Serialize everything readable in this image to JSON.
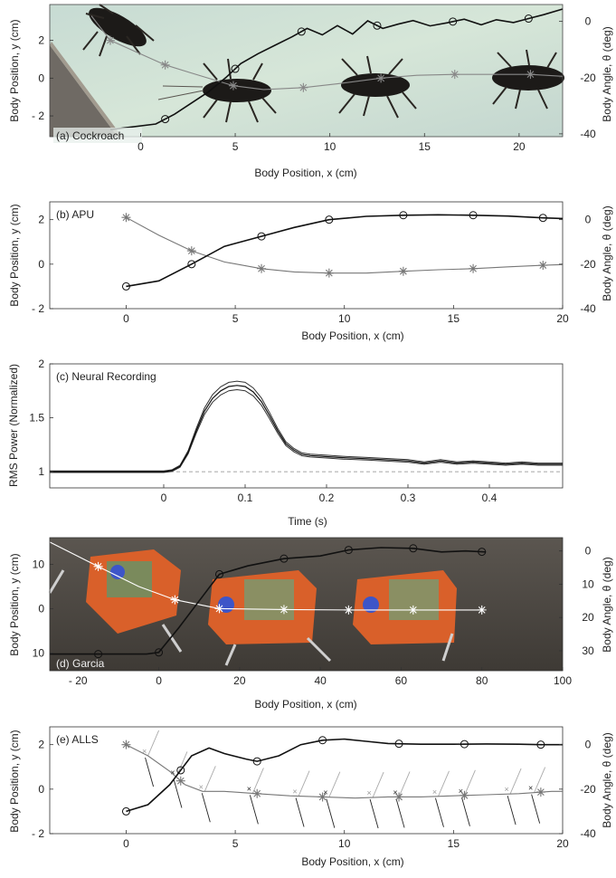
{
  "chart_data": [
    {
      "id": "a",
      "type": "line",
      "panel_label": "(a) Cockroach",
      "background": "photo",
      "xlabel": "Body Position, x (cm)",
      "ylabel": "Body Position, y (cm)",
      "y2label": "Body Angle, θ (deg)",
      "xlim": [
        -4.8,
        22.3
      ],
      "ylim": [
        -3.1,
        3.9
      ],
      "y2lim": [
        -41,
        6
      ],
      "xticks": [
        0,
        5,
        10,
        15,
        20
      ],
      "yticks": [
        2,
        0,
        -2
      ],
      "ytick_labels": [
        "2",
        "0",
        "- 2"
      ],
      "y2ticks": [
        0,
        -20,
        -40
      ],
      "series": [
        {
          "axis": "y",
          "color": "#888888",
          "marker": "star",
          "x": [
            -2.6,
            -1.6,
            1.3,
            2.6,
            4.9,
            6.5,
            8.6,
            10.4,
            12.7,
            14.6,
            16.6,
            18.6,
            20.6,
            22.3
          ],
          "y": [
            3.3,
            2.0,
            0.7,
            0.3,
            -0.4,
            -0.6,
            -0.5,
            -0.3,
            0.0,
            0.15,
            0.2,
            0.2,
            0.2,
            0.1
          ],
          "marker_x": [
            -1.6,
            1.3,
            4.9,
            8.6,
            12.7,
            16.6,
            20.6
          ]
        },
        {
          "axis": "y2",
          "color": "#111111",
          "marker": "circle",
          "x": [
            -1.6,
            0.8,
            1.8,
            2.7,
            3.6,
            4.5,
            5.3,
            6.2,
            7.1,
            8.0,
            8.8,
            9.6,
            10.4,
            11.2,
            12.0,
            12.8,
            13.6,
            14.4,
            15.3,
            16.2,
            17.1,
            18.0,
            18.8,
            19.7,
            20.5,
            21.3,
            22.3
          ],
          "y": [
            -38.5,
            -36.5,
            -33,
            -29,
            -25,
            -20,
            -15,
            -11.5,
            -8.5,
            -5.5,
            -2.5,
            -4.8,
            -1.5,
            -4.5,
            0.2,
            -2.5,
            -1.0,
            0.3,
            -1.6,
            -0.5,
            0.8,
            -1.2,
            0.6,
            -0.4,
            1.0,
            2.4,
            4.4
          ],
          "marker_x": [
            1.3,
            5.0,
            8.5,
            12.5,
            16.5,
            20.5
          ]
        }
      ]
    },
    {
      "id": "b",
      "type": "line",
      "panel_label": "(b) APU",
      "xlabel": "Body Position, x (cm)",
      "ylabel": "Body Position, y (cm)",
      "y2label": "Body Angle, θ (deg)",
      "xlim": [
        -3.5,
        20
      ],
      "ylim": [
        -2,
        2.8
      ],
      "y2lim": [
        -40,
        8
      ],
      "xticks": [
        0,
        5,
        10,
        15,
        20
      ],
      "yticks": [
        2,
        0,
        -2
      ],
      "ytick_labels": [
        "2",
        "0",
        "- 2"
      ],
      "y2ticks": [
        0,
        -20,
        -40
      ],
      "series": [
        {
          "axis": "y",
          "color": "#777777",
          "marker": "star",
          "x": [
            0,
            1.5,
            3.0,
            4.5,
            6.2,
            7.7,
            9.3,
            11.0,
            12.7,
            14.3,
            15.9,
            17.5,
            19.1,
            20
          ],
          "y": [
            2.1,
            1.3,
            0.6,
            0.1,
            -0.2,
            -0.35,
            -0.4,
            -0.4,
            -0.32,
            -0.25,
            -0.2,
            -0.12,
            -0.05,
            -0.02
          ],
          "marker_x": [
            0,
            3.0,
            6.2,
            9.3,
            12.7,
            15.9,
            19.1
          ]
        },
        {
          "axis": "y2",
          "color": "#111111",
          "marker": "circle",
          "x": [
            0,
            1.5,
            3.0,
            4.5,
            6.2,
            7.7,
            9.3,
            11.0,
            12.7,
            14.3,
            15.9,
            17.5,
            19.1,
            20
          ],
          "y": [
            -30,
            -27.5,
            -20,
            -12,
            -7.5,
            -3.5,
            0,
            1.5,
            2.0,
            2.2,
            2.0,
            1.6,
            0.8,
            0.5
          ],
          "marker_x": [
            0,
            3.0,
            6.2,
            9.3,
            12.7,
            15.9,
            19.1
          ]
        }
      ]
    },
    {
      "id": "c",
      "type": "line",
      "panel_label": "(c) Neural Recording",
      "xlabel": "Time (s)",
      "ylabel": "RMS Power (Normalized)",
      "xlim": [
        -0.14,
        0.49
      ],
      "ylim": [
        0.85,
        2.0
      ],
      "xticks": [
        0,
        0.1,
        0.2,
        0.3,
        0.4
      ],
      "yticks": [
        1,
        1.5,
        2
      ],
      "baseline": 1,
      "series": [
        {
          "color": "#111111",
          "x": [
            -0.14,
            0.0,
            0.01,
            0.02,
            0.03,
            0.04,
            0.05,
            0.06,
            0.07,
            0.08,
            0.09,
            0.1,
            0.11,
            0.12,
            0.13,
            0.14,
            0.15,
            0.16,
            0.17,
            0.18,
            0.2,
            0.22,
            0.25,
            0.3,
            0.32,
            0.34,
            0.36,
            0.38,
            0.4,
            0.42,
            0.44,
            0.46,
            0.49
          ],
          "y": [
            1.0,
            1.0,
            1.01,
            1.05,
            1.18,
            1.38,
            1.56,
            1.68,
            1.75,
            1.79,
            1.8,
            1.79,
            1.74,
            1.65,
            1.52,
            1.38,
            1.26,
            1.2,
            1.16,
            1.15,
            1.14,
            1.13,
            1.12,
            1.1,
            1.08,
            1.1,
            1.08,
            1.09,
            1.08,
            1.07,
            1.08,
            1.07,
            1.07
          ]
        }
      ]
    },
    {
      "id": "d",
      "type": "line",
      "panel_label": "(d) Garcia",
      "background": "photo",
      "xlabel": "Body Position, x (cm)",
      "ylabel": "Body Position, y (cm)",
      "y2label": "Body Angle, θ (deg)",
      "xlim": [
        -27,
        100
      ],
      "ylim": [
        -14,
        16
      ],
      "y2lim": [
        -36,
        4
      ],
      "xticks": [
        -20,
        0,
        20,
        40,
        60,
        80,
        100
      ],
      "xtick_labels": [
        "- 20",
        "0",
        "20",
        "40",
        "60",
        "80",
        "100"
      ],
      "yticks": [
        10,
        0,
        -10
      ],
      "ytick_labels": [
        "10",
        "0",
        "10"
      ],
      "y2ticks": [
        0,
        -10,
        -20,
        -30
      ],
      "y2tick_labels": [
        "0",
        "10",
        "20",
        "30"
      ],
      "series": [
        {
          "axis": "y",
          "color": "#ffffff",
          "marker": "star",
          "x": [
            -27,
            -15,
            -5,
            4,
            15,
            31,
            47,
            63,
            80
          ],
          "y": [
            15,
            9.5,
            5,
            2,
            0,
            -0.2,
            -0.3,
            -0.3,
            -0.3
          ],
          "marker_x": [
            -15,
            4,
            15,
            31,
            47,
            63,
            80
          ]
        },
        {
          "axis": "y2",
          "color": "#111111",
          "marker": "circle",
          "x": [
            -27,
            -15,
            -3,
            0,
            5,
            10,
            15,
            22,
            31,
            40,
            47,
            55,
            63,
            70,
            76,
            81
          ],
          "y": [
            -31,
            -31,
            -31,
            -30.5,
            -23,
            -15,
            -7,
            -4.5,
            -2.3,
            -1.5,
            0.3,
            1.0,
            0.8,
            -0.3,
            0,
            -0.3
          ],
          "marker_x": [
            -15,
            0,
            15,
            31,
            47,
            63,
            80
          ]
        }
      ]
    },
    {
      "id": "e",
      "type": "line",
      "panel_label": "(e) ALLS",
      "xlabel": "Body Position, x (cm)",
      "ylabel": "Body Position, y (cm)",
      "y2label": "Body Angle, θ (deg)",
      "xlim": [
        -3.5,
        20
      ],
      "ylim": [
        -2,
        2.8
      ],
      "y2lim": [
        -40,
        8
      ],
      "xticks": [
        0,
        5,
        10,
        15,
        20
      ],
      "yticks": [
        2,
        0,
        -2
      ],
      "ytick_labels": [
        "2",
        "0",
        "- 2"
      ],
      "y2ticks": [
        0,
        -20,
        -40
      ],
      "series": [
        {
          "axis": "y",
          "color": "#777777",
          "marker": "star",
          "x": [
            0,
            1.0,
            2.0,
            2.7,
            3.5,
            4.5,
            6.0,
            7.5,
            9.0,
            10.5,
            12.0,
            13.5,
            15.0,
            16.5,
            18.0,
            19.5,
            20
          ],
          "y": [
            2.0,
            1.5,
            0.8,
            0.2,
            -0.1,
            -0.1,
            -0.2,
            -0.3,
            -0.35,
            -0.4,
            -0.35,
            -0.35,
            -0.3,
            -0.25,
            -0.2,
            -0.1,
            -0.1
          ],
          "marker_x": [
            0,
            2.5,
            6.0,
            9.0,
            12.5,
            15.5,
            19.0
          ]
        },
        {
          "axis": "y2",
          "color": "#111111",
          "marker": "circle",
          "x": [
            0,
            1.0,
            2.0,
            3.0,
            3.8,
            4.5,
            5.5,
            6.0,
            7.0,
            8.0,
            9.0,
            10.0,
            11.0,
            12.0,
            13.5,
            15.0,
            16.5,
            18.0,
            19.0,
            20
          ],
          "y": [
            -30,
            -27,
            -18,
            -5,
            -1.5,
            -4,
            -6.5,
            -7.5,
            -5,
            0,
            2,
            2.5,
            1.5,
            0.5,
            0.2,
            0.2,
            0.3,
            0.2,
            0,
            0
          ],
          "marker_x": [
            0,
            2.5,
            6.0,
            9.0,
            12.5,
            15.5,
            19.0
          ]
        }
      ],
      "leg_x": [
        1.0,
        2.3,
        3.6,
        5.8,
        7.9,
        9.3,
        11.3,
        12.5,
        14.3,
        15.5,
        17.6,
        18.7
      ]
    }
  ]
}
